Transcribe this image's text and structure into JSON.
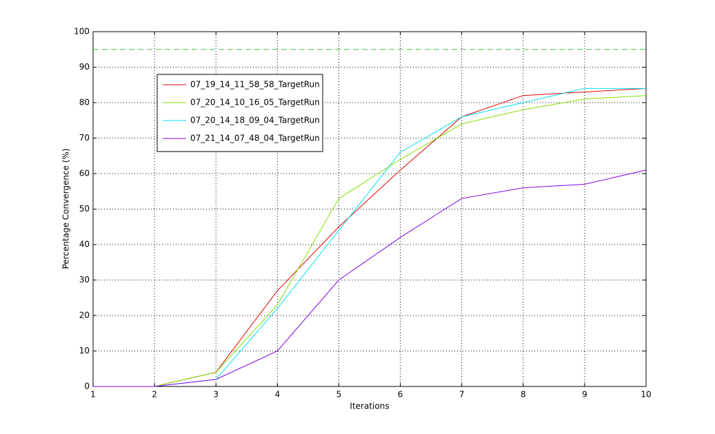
{
  "chart_data": {
    "type": "line",
    "xlabel": "Iterations",
    "ylabel": "Percentage Convergence (%)",
    "x": [
      1,
      2,
      3,
      4,
      5,
      6,
      7,
      8,
      9,
      10
    ],
    "series": [
      {
        "name": "07_19_14_11_58_58_TargetRun",
        "color": "#e00000",
        "values": [
          0,
          0,
          4,
          27,
          45,
          61,
          76,
          82,
          83,
          84
        ]
      },
      {
        "name": "07_20_14_10_16_05_TargetRun",
        "color": "#80e000",
        "values": [
          0,
          0,
          4,
          23,
          53,
          64,
          74,
          78,
          81,
          82
        ]
      },
      {
        "name": "07_20_14_18_09_04_TargetRun",
        "color": "#00e0f0",
        "values": [
          0,
          0,
          2,
          22,
          44,
          66,
          76,
          80,
          84,
          84
        ]
      },
      {
        "name": "07_21_14_07_48_04_TargetRun",
        "color": "#8000e0",
        "values": [
          0,
          0,
          2,
          10,
          30,
          42,
          53,
          56,
          57,
          61
        ]
      }
    ],
    "reference_line": {
      "value": 95,
      "color": "#40c040"
    },
    "xlim": [
      1,
      10
    ],
    "xticks": [
      1,
      2,
      3,
      4,
      5,
      6,
      7,
      8,
      9,
      10
    ],
    "ylim": [
      0,
      100
    ],
    "yticks": [
      0,
      10,
      20,
      30,
      40,
      50,
      60,
      70,
      80,
      90,
      100
    ],
    "grid": true,
    "legend": "upper left"
  }
}
